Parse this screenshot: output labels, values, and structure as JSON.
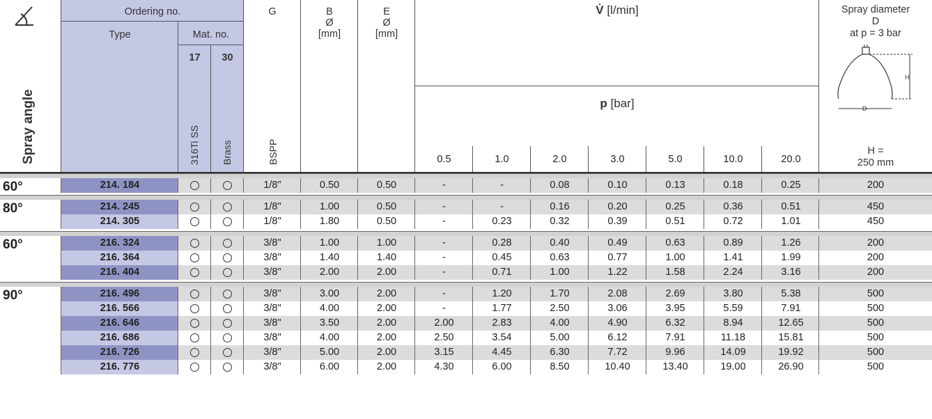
{
  "header": {
    "ordering_no": "Ordering no.",
    "type": "Type",
    "mat_no": "Mat. no.",
    "mat_17": "17",
    "mat_30": "30",
    "mat_17_name": "316Ti SS",
    "mat_30_name": "Brass",
    "g": "G",
    "g_sub": "BSPP",
    "b": "B",
    "b_sym": "Ø",
    "b_unit": "[mm]",
    "e": "E",
    "e_sym": "Ø",
    "e_unit": "[mm]",
    "flow_symbol": "V̇",
    "flow_unit": "[l/min]",
    "pressure_symbol": "p",
    "pressure_unit": "[bar]",
    "pressures": [
      "0.5",
      "1.0",
      "2.0",
      "3.0",
      "5.0",
      "10.0",
      "20.0"
    ],
    "spray_diameter_1": "Spray diameter",
    "spray_diameter_2": "D",
    "spray_diameter_3": "at p = 3 bar",
    "h_label": "H =",
    "h_value": "250 mm",
    "spray_angle": "Spray angle",
    "diagram_h": "H",
    "diagram_d": "D"
  },
  "groups": [
    {
      "angle": "60°",
      "rows": [
        {
          "type": "214. 184",
          "g": "1/8\"",
          "b": "0.50",
          "e": "0.50",
          "flow": [
            "-",
            "-",
            "0.08",
            "0.10",
            "0.13",
            "0.18",
            "0.25"
          ],
          "d": "200"
        }
      ]
    },
    {
      "angle": "80°",
      "rows": [
        {
          "type": "214. 245",
          "g": "1/8\"",
          "b": "1.00",
          "e": "0.50",
          "flow": [
            "-",
            "-",
            "0.16",
            "0.20",
            "0.25",
            "0.36",
            "0.51"
          ],
          "d": "450"
        },
        {
          "type": "214. 305",
          "g": "1/8\"",
          "b": "1.80",
          "e": "0.50",
          "flow": [
            "-",
            "0.23",
            "0.32",
            "0.39",
            "0.51",
            "0.72",
            "1.01"
          ],
          "d": "450"
        }
      ]
    },
    {
      "angle": "60°",
      "rows": [
        {
          "type": "216. 324",
          "g": "3/8\"",
          "b": "1.00",
          "e": "1.00",
          "flow": [
            "-",
            "0.28",
            "0.40",
            "0.49",
            "0.63",
            "0.89",
            "1.26"
          ],
          "d": "200"
        },
        {
          "type": "216. 364",
          "g": "3/8\"",
          "b": "1.40",
          "e": "1.40",
          "flow": [
            "-",
            "0.45",
            "0.63",
            "0.77",
            "1.00",
            "1.41",
            "1.99"
          ],
          "d": "200"
        },
        {
          "type": "216. 404",
          "g": "3/8\"",
          "b": "2.00",
          "e": "2.00",
          "flow": [
            "-",
            "0.71",
            "1.00",
            "1.22",
            "1.58",
            "2.24",
            "3.16"
          ],
          "d": "200"
        }
      ]
    },
    {
      "angle": "90°",
      "rows": [
        {
          "type": "216. 496",
          "g": "3/8\"",
          "b": "3.00",
          "e": "2.00",
          "flow": [
            "-",
            "1.20",
            "1.70",
            "2.08",
            "2.69",
            "3.80",
            "5.38"
          ],
          "d": "500"
        },
        {
          "type": "216. 566",
          "g": "3/8\"",
          "b": "4.00",
          "e": "2.00",
          "flow": [
            "-",
            "1.77",
            "2.50",
            "3.06",
            "3.95",
            "5.59",
            "7.91"
          ],
          "d": "500"
        },
        {
          "type": "216. 646",
          "g": "3/8\"",
          "b": "3.50",
          "e": "2.00",
          "flow": [
            "2.00",
            "2.83",
            "4.00",
            "4.90",
            "6.32",
            "8.94",
            "12.65"
          ],
          "d": "500"
        },
        {
          "type": "216. 686",
          "g": "3/8\"",
          "b": "4.00",
          "e": "2.00",
          "flow": [
            "2.50",
            "3.54",
            "5.00",
            "6.12",
            "7.91",
            "11.18",
            "15.81"
          ],
          "d": "500"
        },
        {
          "type": "216. 726",
          "g": "3/8\"",
          "b": "5.00",
          "e": "2.00",
          "flow": [
            "3.15",
            "4.45",
            "6.30",
            "7.72",
            "9.96",
            "14.09",
            "19.92"
          ],
          "d": "500"
        },
        {
          "type": "216. 776",
          "g": "3/8\"",
          "b": "6.00",
          "e": "2.00",
          "flow": [
            "4.30",
            "6.00",
            "8.50",
            "10.40",
            "13.40",
            "19.00",
            "26.90"
          ],
          "d": "500"
        }
      ]
    }
  ],
  "colors": {
    "type_dark": "#8f93c4",
    "type_light": "#c5c8e4",
    "row_gray": "#dcdcdc",
    "row_white": "#ffffff",
    "separator": "#d2d2d2"
  }
}
